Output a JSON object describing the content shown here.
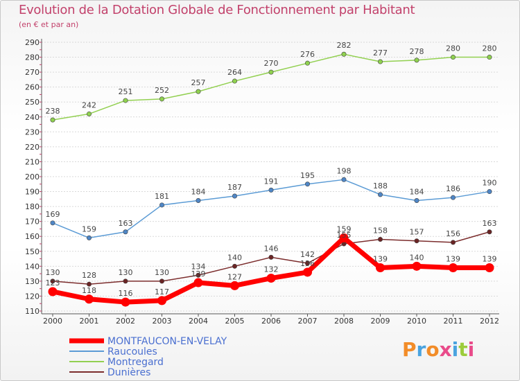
{
  "header": {
    "title": "Evolution de la Dotation Globale de Fonctionnement par Habitant",
    "subtitle": "(en € et par an)"
  },
  "logo": {
    "text": "Proxiti"
  },
  "colors": {
    "title": "#c2416b",
    "montfaucon": "#ff0000",
    "raucoules": "#5b9bd5",
    "montregard": "#92d050",
    "dunieres": "#7b2c2c"
  },
  "chart_data": {
    "type": "line",
    "title": "Evolution de la Dotation Globale de Fonctionnement par Habitant",
    "ylabel": "(en € et par an)",
    "xlabel": "",
    "x": [
      "2000",
      "2001",
      "2002",
      "2003",
      "2004",
      "2005",
      "2006",
      "2007",
      "2008",
      "2009",
      "2010",
      "2011",
      "2012"
    ],
    "ylim": [
      110,
      290
    ],
    "yticks": [
      110,
      120,
      130,
      140,
      150,
      160,
      170,
      180,
      190,
      200,
      210,
      220,
      230,
      240,
      250,
      260,
      270,
      280,
      290
    ],
    "grid": true,
    "legend_position": "bottom-left",
    "series": [
      {
        "name": "Montregard",
        "values": [
          238,
          242,
          251,
          252,
          257,
          264,
          270,
          276,
          282,
          277,
          278,
          280,
          280
        ]
      },
      {
        "name": "Raucoules",
        "values": [
          169,
          159,
          163,
          181,
          184,
          187,
          191,
          195,
          198,
          188,
          184,
          186,
          190
        ]
      },
      {
        "name": "Dunières",
        "values": [
          130,
          128,
          130,
          130,
          134,
          140,
          146,
          142,
          155,
          158,
          157,
          156,
          163
        ]
      },
      {
        "name": "MONTFAUCON-EN-VELAY",
        "values": [
          123,
          118,
          116,
          117,
          129,
          127,
          132,
          136,
          159,
          139,
          140,
          139,
          139
        ]
      }
    ],
    "data_labels": {
      "Montregard": [
        "238",
        "242",
        "251",
        "252",
        "257",
        "264",
        "270",
        "276",
        "282",
        "277",
        "278",
        "280",
        "280"
      ],
      "Raucoules": [
        "169",
        "159",
        "163",
        "181",
        "184",
        "187",
        "191",
        "195",
        "198",
        "188",
        "184",
        "186",
        "190"
      ],
      "Dunières": [
        "130",
        "128",
        "130",
        "130",
        "134",
        "140",
        "146",
        "142",
        "155",
        "158",
        "157",
        "156",
        "163"
      ],
      "MONTFAUCON-EN-VELAY": [
        "123",
        "118",
        "116",
        "117",
        "129",
        "127",
        "132",
        "136",
        "159",
        "139",
        "140",
        "139",
        "139"
      ]
    }
  }
}
